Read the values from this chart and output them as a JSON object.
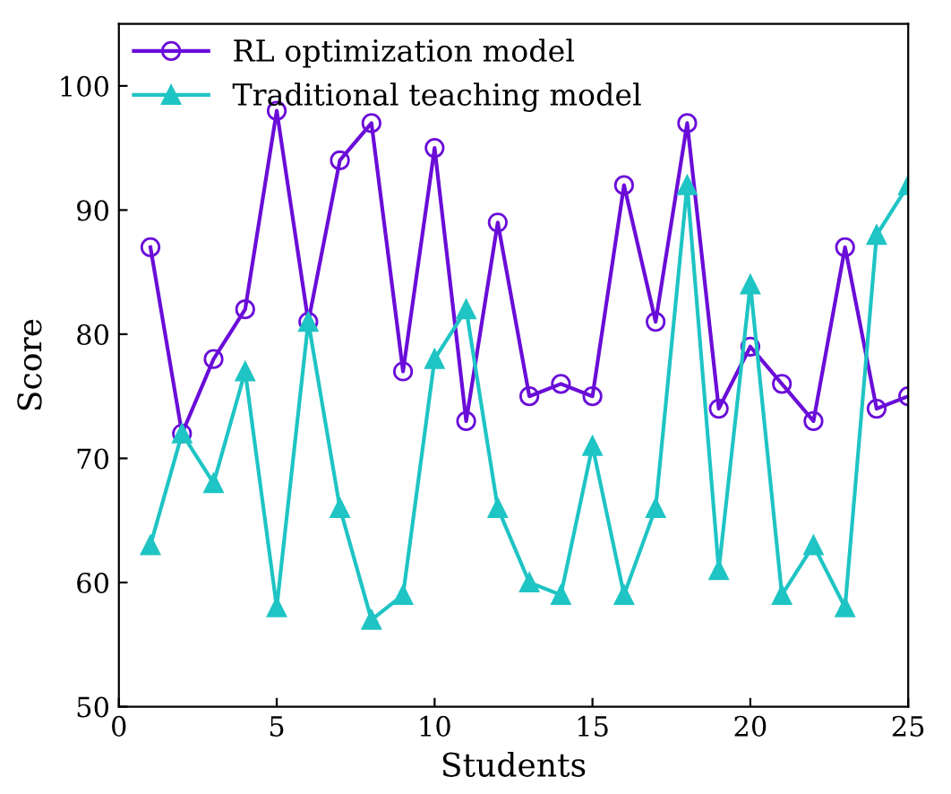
{
  "chart_data": {
    "type": "line",
    "xlabel": "Students",
    "ylabel": "Score",
    "x": [
      1,
      2,
      3,
      4,
      5,
      6,
      7,
      8,
      9,
      10,
      11,
      12,
      13,
      14,
      15,
      16,
      17,
      18,
      19,
      20,
      21,
      22,
      23,
      24,
      25
    ],
    "series": [
      {
        "name": "RL optimization model",
        "color": "#6a0dd8",
        "marker": "circle",
        "values": [
          87,
          72,
          78,
          82,
          98,
          81,
          94,
          97,
          77,
          95,
          73,
          89,
          75,
          76,
          75,
          92,
          81,
          97,
          74,
          79,
          76,
          73,
          87,
          74,
          75
        ]
      },
      {
        "name": "Traditional teaching model",
        "color": "#1fc4c4",
        "marker": "triangle",
        "values": [
          63,
          72,
          68,
          77,
          58,
          81,
          66,
          57,
          59,
          78,
          82,
          66,
          60,
          59,
          71,
          59,
          66,
          92,
          61,
          84,
          59,
          63,
          58,
          88,
          92
        ]
      }
    ],
    "xlim": [
      0,
      25
    ],
    "ylim": [
      50,
      105
    ],
    "xticks": [
      0,
      5,
      10,
      15,
      20,
      25
    ],
    "yticks": [
      50,
      60,
      70,
      80,
      90,
      100
    ],
    "grid": false,
    "legend": "top left",
    "line_style": "solid"
  }
}
